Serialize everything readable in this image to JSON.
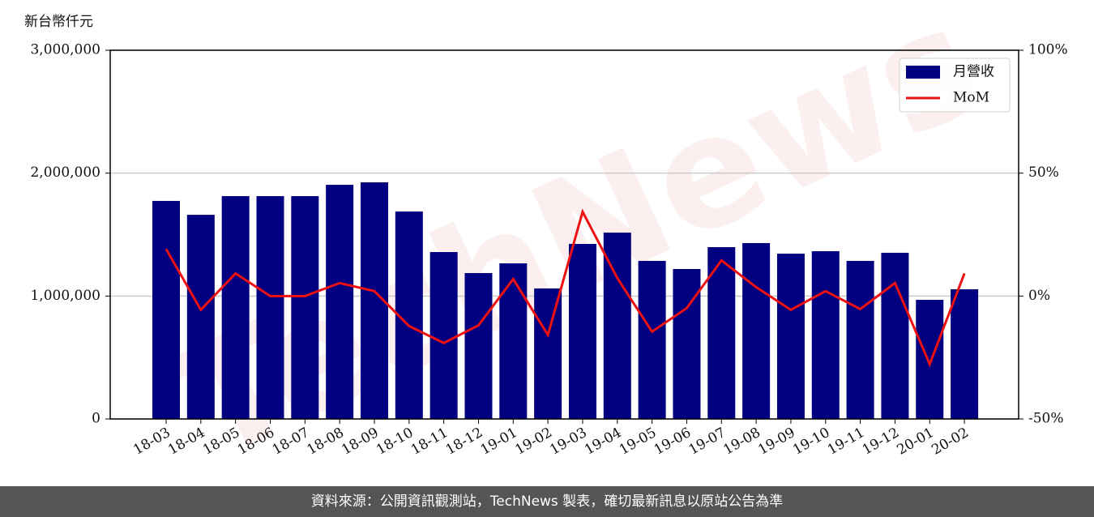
{
  "chart_data": {
    "type": "bar",
    "ylabel": "新台幣仟元",
    "watermark": "TechNews",
    "footer": "資料來源：公開資訊觀測站，TechNews 製表，確切最新訊息以原站公告為準",
    "categories": [
      "18-03",
      "18-04",
      "18-05",
      "18-06",
      "18-07",
      "18-08",
      "18-09",
      "18-10",
      "18-11",
      "18-12",
      "19-01",
      "19-02",
      "19-03",
      "19-04",
      "19-05",
      "19-06",
      "19-07",
      "19-08",
      "19-09",
      "19-10",
      "19-11",
      "19-12",
      "20-01",
      "20-02"
    ],
    "series": [
      {
        "name": "月營收",
        "type": "bar",
        "axis": "y",
        "color": "#000080",
        "values": [
          1774000,
          1661000,
          1813000,
          1813000,
          1813000,
          1905000,
          1925000,
          1688000,
          1358000,
          1187000,
          1266000,
          1062000,
          1424000,
          1516000,
          1286000,
          1220000,
          1398000,
          1431000,
          1345000,
          1365000,
          1286000,
          1352000,
          969000,
          1055000
        ]
      },
      {
        "name": "MoM",
        "type": "line",
        "axis": "y2",
        "color": "#ee1111",
        "values": [
          19.1,
          -5.6,
          9.2,
          0,
          0,
          5.3,
          2,
          -12.2,
          -19.1,
          -11.9,
          6.9,
          -15.8,
          34.3,
          7.3,
          -14.5,
          -4.9,
          14.5,
          3.6,
          -5.6,
          2,
          -5.3,
          5.3,
          -27.7,
          9.2
        ]
      }
    ],
    "ylim": [
      0,
      3000000
    ],
    "yticks": [
      0,
      {
        "value": 1000000,
        "label": "1,000,000"
      },
      {
        "value": 2000000,
        "label": "2,000,000"
      },
      {
        "value": 3000000,
        "label": "3,000,000"
      }
    ],
    "y2lim": [
      -50,
      100
    ],
    "y2ticks": [
      {
        "value": -50,
        "label": "-50%"
      },
      {
        "value": 0,
        "label": "0%"
      },
      {
        "value": 50,
        "label": "50%"
      },
      {
        "value": 100,
        "label": "100%"
      }
    ],
    "grid": true,
    "legend": "upper right"
  }
}
